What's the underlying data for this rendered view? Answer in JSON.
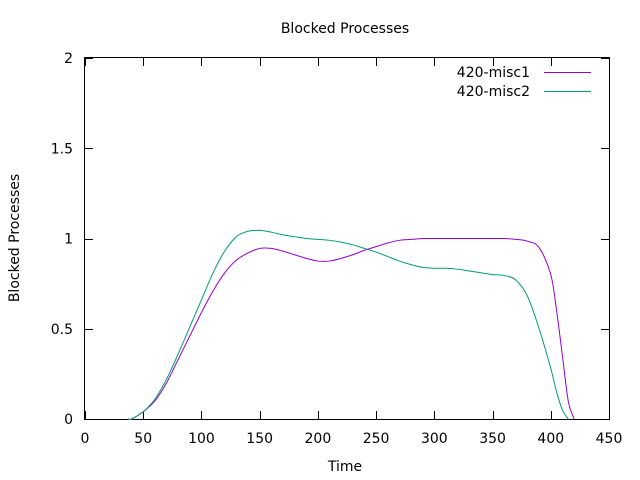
{
  "chart_data": {
    "type": "line",
    "title": "Blocked Processes",
    "xlabel": "Time",
    "ylabel": "Blocked Processes",
    "xlim": [
      0,
      450
    ],
    "ylim": [
      0,
      2
    ],
    "xticks": [
      0,
      50,
      100,
      150,
      200,
      250,
      300,
      350,
      400,
      450
    ],
    "yticks": [
      0,
      0.5,
      1,
      1.5,
      2
    ],
    "ytick_labels": [
      "0",
      "0.5",
      "1",
      "1.5",
      "2"
    ],
    "grid": false,
    "legend_position": "top-right",
    "series": [
      {
        "name": "420-misc1",
        "color": "#9400d3",
        "x": [
          37,
          40,
          50,
          60,
          70,
          80,
          90,
          100,
          110,
          120,
          130,
          140,
          150,
          160,
          170,
          180,
          190,
          200,
          210,
          220,
          230,
          240,
          250,
          260,
          270,
          280,
          290,
          300,
          310,
          320,
          330,
          340,
          350,
          360,
          370,
          380,
          390,
          400,
          405,
          410,
          415,
          420
        ],
        "y": [
          0,
          0.0,
          0.04,
          0.1,
          0.2,
          0.33,
          0.46,
          0.59,
          0.71,
          0.81,
          0.88,
          0.92,
          0.945,
          0.945,
          0.93,
          0.91,
          0.89,
          0.875,
          0.875,
          0.89,
          0.91,
          0.935,
          0.955,
          0.975,
          0.99,
          0.995,
          1.0,
          1.0,
          1.0,
          1.0,
          1.0,
          1.0,
          1.0,
          1.0,
          0.995,
          0.985,
          0.95,
          0.8,
          0.6,
          0.35,
          0.1,
          0.0
        ]
      },
      {
        "name": "420-misc2",
        "color": "#009e73",
        "x": [
          37,
          40,
          50,
          60,
          70,
          80,
          90,
          100,
          110,
          120,
          130,
          140,
          150,
          160,
          170,
          180,
          190,
          200,
          210,
          220,
          230,
          240,
          250,
          260,
          270,
          280,
          290,
          300,
          310,
          320,
          330,
          340,
          350,
          360,
          370,
          380,
          390,
          400,
          405,
          410,
          415
        ],
        "y": [
          0,
          0.0,
          0.04,
          0.11,
          0.22,
          0.36,
          0.51,
          0.66,
          0.81,
          0.93,
          1.01,
          1.04,
          1.045,
          1.035,
          1.02,
          1.01,
          1.0,
          0.995,
          0.99,
          0.98,
          0.965,
          0.945,
          0.925,
          0.9,
          0.875,
          0.855,
          0.84,
          0.835,
          0.835,
          0.83,
          0.82,
          0.81,
          0.8,
          0.795,
          0.77,
          0.68,
          0.5,
          0.28,
          0.15,
          0.05,
          0.0
        ]
      }
    ]
  }
}
